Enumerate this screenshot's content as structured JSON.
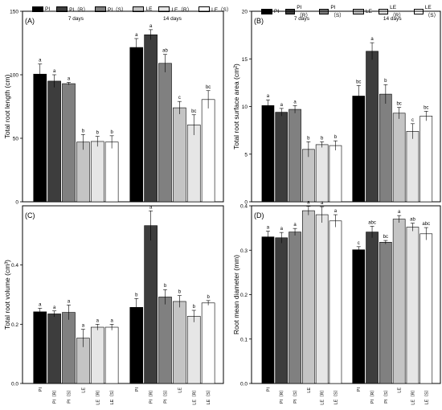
{
  "legend": {
    "items": [
      {
        "label": "PI",
        "color": "#000000"
      },
      {
        "label": "PI（R）",
        "color": "#3d3d3d"
      },
      {
        "label": "PI（S）",
        "color": "#808080"
      },
      {
        "label": "LE",
        "color": "#c4c4c4"
      },
      {
        "label": "LE（R）",
        "color": "#e6e6e6"
      },
      {
        "label": "LE（S）",
        "color": "#ffffff"
      }
    ]
  },
  "chart_data": [
    {
      "type": "bar",
      "panel_label": "(A)",
      "ylabel": "Total root length (cm)",
      "ylim": [
        0,
        150
      ],
      "yticks": [
        0,
        50,
        100,
        150
      ],
      "groups": [
        "7 days",
        "14 days"
      ],
      "categories": [
        "PI",
        "PI（R）",
        "PI（S）",
        "LE",
        "LE（R）",
        "LE（S）"
      ],
      "show_xticklabels": false,
      "series": [
        {
          "name": "7 days",
          "values": [
            100.5,
            95.0,
            93.0,
            47.0,
            47.5,
            47.0
          ],
          "errors": [
            8,
            5,
            1,
            6,
            4,
            5
          ],
          "letters": [
            "a",
            "a",
            "a",
            "b",
            "b",
            "b"
          ]
        },
        {
          "name": "14 days",
          "values": [
            121.5,
            131.5,
            109.0,
            74.0,
            60.5,
            80.5
          ],
          "errors": [
            7,
            4,
            7,
            5,
            8,
            7
          ],
          "letters": [
            "a",
            "a",
            "ab",
            "c",
            "bc",
            "bc"
          ]
        }
      ]
    },
    {
      "type": "bar",
      "panel_label": "(B)",
      "ylabel": "Total root surface area (cm²)",
      "ylim": [
        0,
        20
      ],
      "yticks": [
        0,
        5,
        10,
        15,
        20
      ],
      "groups": [
        "7 days",
        "14 days"
      ],
      "categories": [
        "PI",
        "PI（R）",
        "PI（S）",
        "LE",
        "LE（R）",
        "LE（S）"
      ],
      "show_xticklabels": false,
      "series": [
        {
          "name": "7 days",
          "values": [
            10.1,
            9.4,
            9.7,
            5.5,
            6.0,
            5.9
          ],
          "errors": [
            0.6,
            0.4,
            0.4,
            0.8,
            0.3,
            0.5
          ],
          "letters": [
            "a",
            "a",
            "a",
            "b",
            "b",
            "b"
          ]
        },
        {
          "name": "14 days",
          "values": [
            11.1,
            15.8,
            11.3,
            9.3,
            7.4,
            9.0
          ],
          "errors": [
            1.1,
            0.9,
            1.0,
            0.6,
            0.8,
            0.5
          ],
          "letters": [
            "bc",
            "a",
            "b",
            "bc",
            "c",
            "bc"
          ]
        }
      ]
    },
    {
      "type": "bar",
      "panel_label": "(C)",
      "ylabel": "Total root volume (cm³)",
      "ylim": [
        0,
        0.6
      ],
      "yticks": [
        0.0,
        0.2,
        0.4
      ],
      "groups": [],
      "categories": [
        "PI",
        "PI（R）",
        "PI（S）",
        "LE",
        "LE（R）",
        "LE（S）"
      ],
      "show_xticklabels": true,
      "series": [
        {
          "name": "7 days",
          "values": [
            0.242,
            0.235,
            0.24,
            0.153,
            0.19,
            0.19
          ],
          "errors": [
            0.012,
            0.01,
            0.025,
            0.03,
            0.01,
            0.01
          ],
          "letters": [
            "a",
            "a",
            "a",
            "a",
            "a",
            "a"
          ]
        },
        {
          "name": "14 days",
          "values": [
            0.257,
            0.533,
            0.292,
            0.277,
            0.227,
            0.272
          ],
          "errors": [
            0.03,
            0.05,
            0.025,
            0.02,
            0.02,
            0.008
          ],
          "letters": [
            "b",
            "a",
            "b",
            "b",
            "b",
            "b"
          ]
        }
      ]
    },
    {
      "type": "bar",
      "panel_label": "(D)",
      "ylabel": "Root mean diameter (mm)",
      "ylim": [
        0,
        0.4
      ],
      "yticks": [
        0.0,
        0.1,
        0.2,
        0.3,
        0.4
      ],
      "groups": [],
      "categories": [
        "PI",
        "PI（R）",
        "PI（S）",
        "LE",
        "LE（R）",
        "LE（S）"
      ],
      "show_xticklabels": true,
      "series": [
        {
          "name": "7 days",
          "values": [
            0.33,
            0.328,
            0.341,
            0.389,
            0.38,
            0.366
          ],
          "errors": [
            0.013,
            0.012,
            0.008,
            0.01,
            0.018,
            0.014
          ],
          "letters": [
            "a",
            "a",
            "a",
            "a",
            "a",
            "a"
          ]
        },
        {
          "name": "14 days",
          "values": [
            0.301,
            0.341,
            0.318,
            0.37,
            0.352,
            0.337
          ],
          "errors": [
            0.007,
            0.013,
            0.004,
            0.008,
            0.009,
            0.014
          ],
          "letters": [
            "c",
            "abc",
            "bc",
            "a",
            "ab",
            "abc"
          ]
        }
      ]
    }
  ]
}
